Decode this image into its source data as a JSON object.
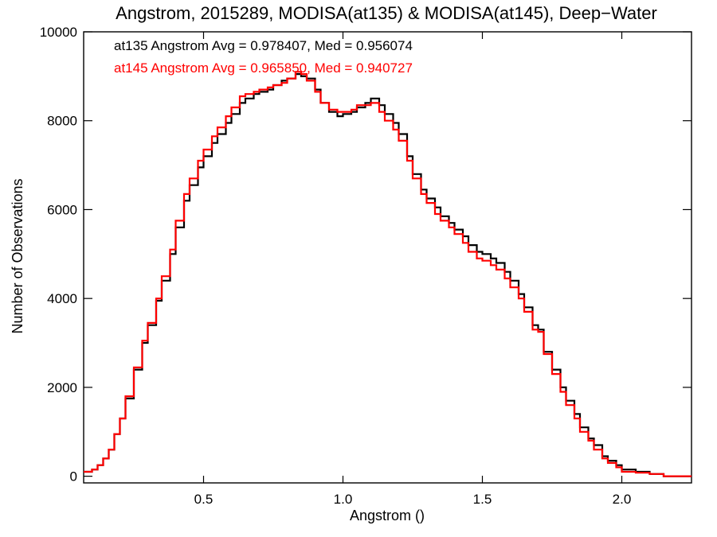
{
  "chart_data": {
    "type": "line",
    "title": "Angstrom, 2015289, MODISA(at135) & MODISA(at145), Deep−Water",
    "xlabel": "Angstrom ()",
    "ylabel": "Number of Observations",
    "xlim": [
      0.07,
      2.25
    ],
    "ylim": [
      -150,
      10000
    ],
    "x_ticks": [
      0.5,
      1.0,
      1.5,
      2.0
    ],
    "x_tick_labels": [
      "0.5",
      "1.0",
      "1.5",
      "2.0"
    ],
    "y_ticks": [
      0,
      2000,
      4000,
      6000,
      8000,
      10000
    ],
    "y_tick_labels": [
      "0",
      "2000",
      "4000",
      "6000",
      "8000",
      "10000"
    ],
    "grid": false,
    "legend_placement": "top-left",
    "annotations": [
      {
        "text": "at135 Angstrom Avg = 0.978407, Med = 0.956074",
        "color": "#000000"
      },
      {
        "text": "at145 Angstrom Avg = 0.965850, Med = 0.940727",
        "color": "#ff0000"
      }
    ],
    "series": [
      {
        "color": "#000000",
        "style": "step",
        "x": [
          0.07,
          0.1,
          0.12,
          0.14,
          0.16,
          0.18,
          0.2,
          0.22,
          0.25,
          0.28,
          0.3,
          0.33,
          0.35,
          0.38,
          0.4,
          0.43,
          0.45,
          0.48,
          0.5,
          0.53,
          0.55,
          0.58,
          0.6,
          0.63,
          0.65,
          0.68,
          0.7,
          0.73,
          0.75,
          0.78,
          0.8,
          0.83,
          0.85,
          0.87,
          0.9,
          0.92,
          0.95,
          0.98,
          1.0,
          1.03,
          1.05,
          1.08,
          1.1,
          1.13,
          1.15,
          1.18,
          1.2,
          1.23,
          1.25,
          1.28,
          1.3,
          1.33,
          1.35,
          1.38,
          1.4,
          1.43,
          1.45,
          1.48,
          1.5,
          1.53,
          1.55,
          1.58,
          1.6,
          1.63,
          1.65,
          1.68,
          1.7,
          1.72,
          1.75,
          1.78,
          1.8,
          1.83,
          1.85,
          1.88,
          1.9,
          1.93,
          1.95,
          1.98,
          2.0,
          2.05,
          2.1,
          2.15
        ],
        "y": [
          100,
          150,
          250,
          400,
          600,
          950,
          1300,
          1750,
          2400,
          3000,
          3400,
          3950,
          4400,
          5000,
          5600,
          6200,
          6550,
          6950,
          7200,
          7500,
          7700,
          7950,
          8150,
          8400,
          8500,
          8600,
          8650,
          8700,
          8800,
          8900,
          8950,
          9050,
          9000,
          8950,
          8700,
          8400,
          8200,
          8100,
          8150,
          8200,
          8300,
          8400,
          8500,
          8350,
          8150,
          7950,
          7700,
          7200,
          6800,
          6450,
          6250,
          6050,
          5850,
          5700,
          5550,
          5400,
          5200,
          5050,
          5000,
          4900,
          4800,
          4600,
          4400,
          4100,
          3800,
          3400,
          3300,
          2800,
          2400,
          2000,
          1700,
          1400,
          1100,
          850,
          700,
          450,
          350,
          250,
          150,
          100,
          50,
          0
        ]
      },
      {
        "color": "#ff0000",
        "style": "step",
        "x": [
          0.07,
          0.1,
          0.12,
          0.14,
          0.16,
          0.18,
          0.2,
          0.22,
          0.25,
          0.28,
          0.3,
          0.33,
          0.35,
          0.38,
          0.4,
          0.43,
          0.45,
          0.48,
          0.5,
          0.53,
          0.55,
          0.58,
          0.6,
          0.63,
          0.65,
          0.68,
          0.7,
          0.73,
          0.75,
          0.78,
          0.8,
          0.83,
          0.85,
          0.87,
          0.9,
          0.92,
          0.95,
          0.98,
          1.0,
          1.03,
          1.05,
          1.08,
          1.1,
          1.13,
          1.15,
          1.18,
          1.2,
          1.23,
          1.25,
          1.28,
          1.3,
          1.33,
          1.35,
          1.38,
          1.4,
          1.43,
          1.45,
          1.48,
          1.5,
          1.53,
          1.55,
          1.58,
          1.6,
          1.63,
          1.65,
          1.68,
          1.7,
          1.72,
          1.75,
          1.78,
          1.8,
          1.83,
          1.85,
          1.88,
          1.9,
          1.93,
          1.95,
          1.98,
          2.0,
          2.05,
          2.1,
          2.15
        ],
        "y": [
          100,
          150,
          250,
          400,
          600,
          950,
          1300,
          1800,
          2450,
          3050,
          3450,
          4000,
          4500,
          5100,
          5750,
          6350,
          6700,
          7100,
          7350,
          7650,
          7850,
          8100,
          8300,
          8550,
          8600,
          8650,
          8700,
          8750,
          8800,
          8850,
          8950,
          9100,
          9050,
          8900,
          8650,
          8400,
          8250,
          8200,
          8200,
          8250,
          8350,
          8350,
          8400,
          8200,
          8000,
          7800,
          7550,
          7100,
          6700,
          6350,
          6150,
          5900,
          5750,
          5600,
          5450,
          5250,
          5050,
          4900,
          4850,
          4750,
          4650,
          4450,
          4250,
          4000,
          3700,
          3300,
          3250,
          2750,
          2300,
          1900,
          1600,
          1300,
          1000,
          800,
          600,
          400,
          300,
          200,
          100,
          80,
          50,
          0
        ]
      }
    ]
  }
}
